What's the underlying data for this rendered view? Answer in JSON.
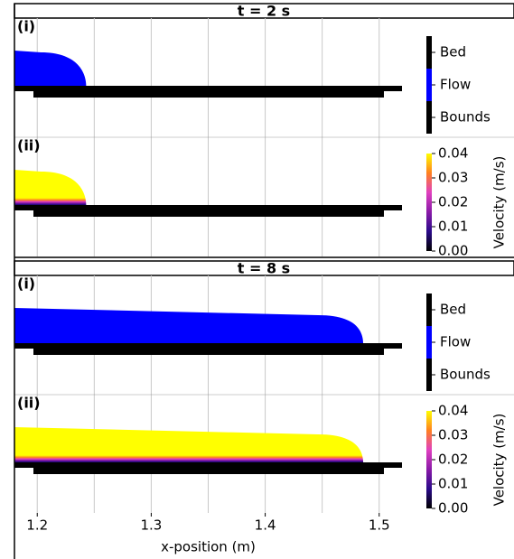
{
  "chart_data": {
    "type": "flow",
    "xlabel": "x-position (m)",
    "xlim": [
      1.18,
      1.52
    ],
    "xticks": [
      1.2,
      1.3,
      1.4,
      1.5
    ],
    "xminor": [
      1.25,
      1.35,
      1.45
    ],
    "grid": true,
    "panels": [
      {
        "title": "t = 2 s",
        "front": 1.243
      },
      {
        "title": "t = 8 s",
        "front": 1.486
      }
    ],
    "subplot_labels": [
      "(i)",
      "(ii)"
    ],
    "legend": [
      {
        "name": "Bed",
        "color": "#000000"
      },
      {
        "name": "Flow",
        "color": "#0000ff"
      },
      {
        "name": "Bounds",
        "color": "#000000"
      }
    ],
    "colorbar": {
      "label": "Velocity (m/s)",
      "lim": [
        0,
        0.04
      ],
      "ticks": [
        {
          "value": 0,
          "label": "0.00"
        },
        0.01,
        0.02,
        0.03,
        0.04
      ],
      "colors": [
        "#000000",
        "#2a0a8a",
        "#8a1aa8",
        "#e040c0",
        "#ff8020",
        "#ffff00"
      ]
    }
  }
}
